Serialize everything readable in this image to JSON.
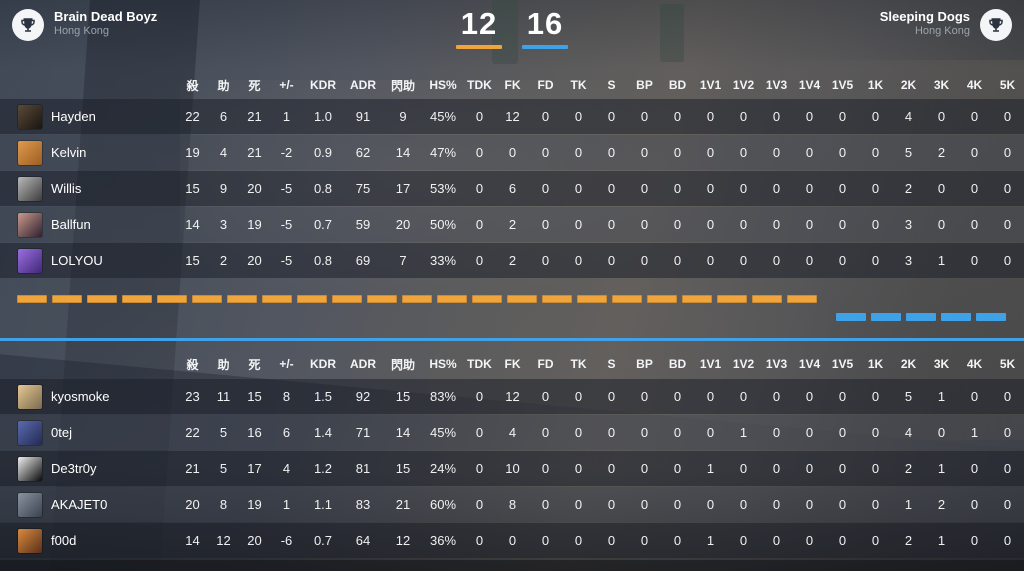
{
  "header": {
    "team_left": {
      "name": "Brain Dead Boyz",
      "country": "Hong Kong",
      "score": "12"
    },
    "team_right": {
      "name": "Sleeping Dogs",
      "country": "Hong Kong",
      "score": "16"
    }
  },
  "columns": [
    "殺",
    "助",
    "死",
    "+/-",
    "KDR",
    "ADR",
    "閃助",
    "HS%",
    "TDK",
    "FK",
    "FD",
    "TK",
    "S",
    "BP",
    "BD",
    "1V1",
    "1V2",
    "1V3",
    "1V4",
    "1V5",
    "1K",
    "2K",
    "3K",
    "4K",
    "5K"
  ],
  "teams": [
    {
      "players": [
        {
          "name": "Hayden",
          "avatar": [
            "#5a4a38",
            "#191511"
          ],
          "stats": [
            "22",
            "6",
            "21",
            "1",
            "1.0",
            "91",
            "9",
            "45%",
            "0",
            "12",
            "0",
            "0",
            "0",
            "0",
            "0",
            "0",
            "0",
            "0",
            "0",
            "0",
            "0",
            "4",
            "0",
            "0",
            "0"
          ]
        },
        {
          "name": "Kelvin",
          "avatar": [
            "#e09a4e",
            "#9c5e22"
          ],
          "stats": [
            "19",
            "4",
            "21",
            "-2",
            "0.9",
            "62",
            "14",
            "47%",
            "0",
            "0",
            "0",
            "0",
            "0",
            "0",
            "0",
            "0",
            "0",
            "0",
            "0",
            "0",
            "0",
            "5",
            "2",
            "0",
            "0"
          ]
        },
        {
          "name": "Willis",
          "avatar": [
            "#b9b9b9",
            "#3c3c3c"
          ],
          "stats": [
            "15",
            "9",
            "20",
            "-5",
            "0.8",
            "75",
            "17",
            "53%",
            "0",
            "6",
            "0",
            "0",
            "0",
            "0",
            "0",
            "0",
            "0",
            "0",
            "0",
            "0",
            "0",
            "2",
            "0",
            "0",
            "0"
          ]
        },
        {
          "name": "Ballfun",
          "avatar": [
            "#c99a8a",
            "#2e2030"
          ],
          "stats": [
            "14",
            "3",
            "19",
            "-5",
            "0.7",
            "59",
            "20",
            "50%",
            "0",
            "2",
            "0",
            "0",
            "0",
            "0",
            "0",
            "0",
            "0",
            "0",
            "0",
            "0",
            "0",
            "3",
            "0",
            "0",
            "0"
          ]
        },
        {
          "name": "LOLYOU",
          "avatar": [
            "#9a6fe0",
            "#41277a"
          ],
          "stats": [
            "15",
            "2",
            "20",
            "-5",
            "0.8",
            "69",
            "7",
            "33%",
            "0",
            "2",
            "0",
            "0",
            "0",
            "0",
            "0",
            "0",
            "0",
            "0",
            "0",
            "0",
            "0",
            "3",
            "1",
            "0",
            "0"
          ]
        }
      ]
    },
    {
      "players": [
        {
          "name": "kyosmoke",
          "avatar": [
            "#e6c892",
            "#7a6a4e"
          ],
          "stats": [
            "23",
            "11",
            "15",
            "8",
            "1.5",
            "92",
            "15",
            "83%",
            "0",
            "12",
            "0",
            "0",
            "0",
            "0",
            "0",
            "0",
            "0",
            "0",
            "0",
            "0",
            "0",
            "5",
            "1",
            "0",
            "0"
          ]
        },
        {
          "name": "0tej",
          "avatar": [
            "#5a6ab0",
            "#232a52"
          ],
          "stats": [
            "22",
            "5",
            "16",
            "6",
            "1.4",
            "71",
            "14",
            "45%",
            "0",
            "4",
            "0",
            "0",
            "0",
            "0",
            "0",
            "0",
            "1",
            "0",
            "0",
            "0",
            "0",
            "4",
            "0",
            "1",
            "0"
          ]
        },
        {
          "name": "De3tr0y",
          "avatar": [
            "#efefef",
            "#0a0a0a"
          ],
          "stats": [
            "21",
            "5",
            "17",
            "4",
            "1.2",
            "81",
            "15",
            "24%",
            "0",
            "10",
            "0",
            "0",
            "0",
            "0",
            "0",
            "1",
            "0",
            "0",
            "0",
            "0",
            "0",
            "2",
            "1",
            "0",
            "0"
          ]
        },
        {
          "name": "AKAJET0",
          "avatar": [
            "#8a93a0",
            "#3a4250"
          ],
          "stats": [
            "20",
            "8",
            "19",
            "1",
            "1.1",
            "83",
            "21",
            "60%",
            "0",
            "8",
            "0",
            "0",
            "0",
            "0",
            "0",
            "0",
            "0",
            "0",
            "0",
            "0",
            "0",
            "1",
            "2",
            "0",
            "0"
          ]
        },
        {
          "name": "f00d",
          "avatar": [
            "#d98a3e",
            "#58301a"
          ],
          "stats": [
            "14",
            "12",
            "20",
            "-6",
            "0.7",
            "64",
            "12",
            "36%",
            "0",
            "0",
            "0",
            "0",
            "0",
            "0",
            "0",
            "1",
            "0",
            "0",
            "0",
            "0",
            "0",
            "2",
            "1",
            "0",
            "0"
          ]
        }
      ]
    }
  ],
  "round_bar": {
    "team1_segments": 23,
    "team2_segments": 5
  },
  "colors": {
    "team1_accent": "#F0A43C",
    "team2_accent": "#3FA2E9"
  },
  "icons": {
    "team_left_logo": "trophy-icon",
    "team_right_logo": "trophy-icon"
  }
}
